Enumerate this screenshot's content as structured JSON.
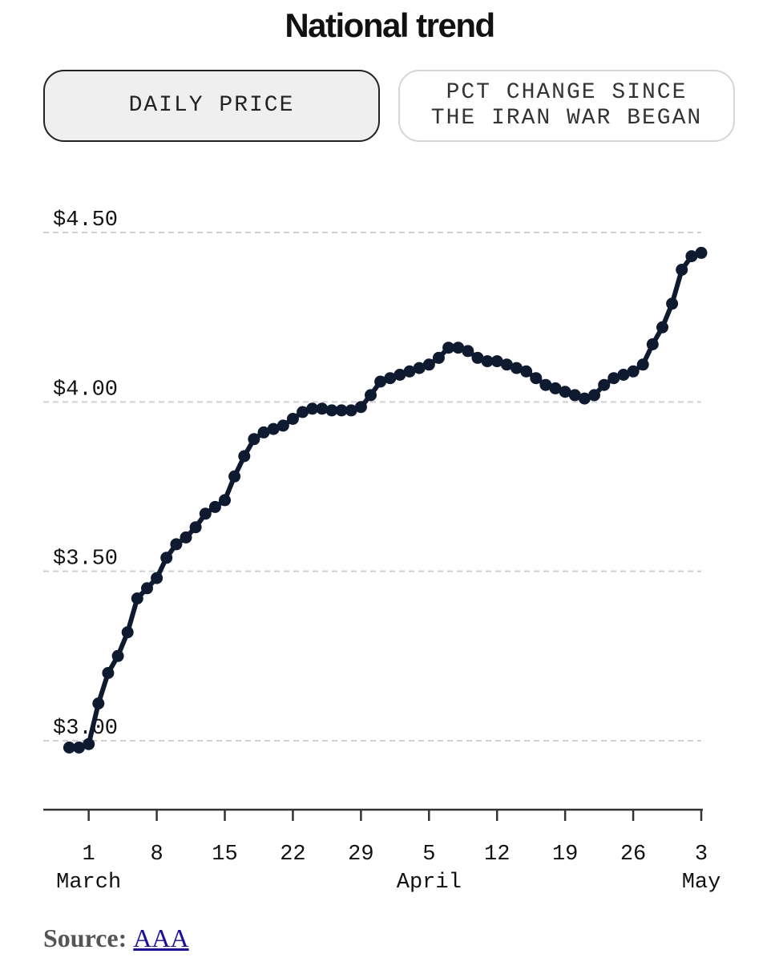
{
  "header": {
    "title": "National trend"
  },
  "toggles": [
    {
      "label": "DAILY PRICE",
      "active": true
    },
    {
      "label": "PCT CHANGE SINCE\nTHE IRAN WAR BEGAN",
      "active": false
    }
  ],
  "source": {
    "label": "Source:",
    "link_text": "AAA"
  },
  "colors": {
    "line": "#0e1a2f",
    "grid": "#cfcfcf",
    "axis": "#333333"
  },
  "chart_data": {
    "type": "line",
    "title": "National trend",
    "xlabel": "",
    "ylabel": "",
    "ylim": [
      2.85,
      4.65
    ],
    "y_ticks": [
      {
        "value": 3.0,
        "label": "$3.00"
      },
      {
        "value": 3.5,
        "label": "$3.50"
      },
      {
        "value": 4.0,
        "label": "$4.00"
      },
      {
        "value": 4.5,
        "label": "$4.50"
      }
    ],
    "x_ticks": [
      {
        "date": "2026-03-01",
        "label": "1",
        "month": "March"
      },
      {
        "date": "2026-03-08",
        "label": "8",
        "month": ""
      },
      {
        "date": "2026-03-15",
        "label": "15",
        "month": ""
      },
      {
        "date": "2026-03-22",
        "label": "22",
        "month": ""
      },
      {
        "date": "2026-03-29",
        "label": "29",
        "month": ""
      },
      {
        "date": "2026-04-05",
        "label": "5",
        "month": "April"
      },
      {
        "date": "2026-04-12",
        "label": "12",
        "month": ""
      },
      {
        "date": "2026-04-19",
        "label": "19",
        "month": ""
      },
      {
        "date": "2026-04-26",
        "label": "26",
        "month": ""
      },
      {
        "date": "2026-05-03",
        "label": "3",
        "month": "May"
      }
    ],
    "xlim": [
      "2026-02-24",
      "2026-05-03"
    ],
    "grid": true,
    "series": [
      {
        "x": [
          "2026-02-27",
          "2026-02-28",
          "2026-03-01",
          "2026-03-02",
          "2026-03-03",
          "2026-03-04",
          "2026-03-05",
          "2026-03-06",
          "2026-03-07",
          "2026-03-08",
          "2026-03-09",
          "2026-03-10",
          "2026-03-11",
          "2026-03-12",
          "2026-03-13",
          "2026-03-14",
          "2026-03-15",
          "2026-03-16",
          "2026-03-17",
          "2026-03-18",
          "2026-03-19",
          "2026-03-20",
          "2026-03-21",
          "2026-03-22",
          "2026-03-23",
          "2026-03-24",
          "2026-03-25",
          "2026-03-26",
          "2026-03-27",
          "2026-03-28",
          "2026-03-29",
          "2026-03-30",
          "2026-03-31",
          "2026-04-01",
          "2026-04-02",
          "2026-04-03",
          "2026-04-04",
          "2026-04-05",
          "2026-04-06",
          "2026-04-07",
          "2026-04-08",
          "2026-04-09",
          "2026-04-10",
          "2026-04-11",
          "2026-04-12",
          "2026-04-13",
          "2026-04-14",
          "2026-04-15",
          "2026-04-16",
          "2026-04-17",
          "2026-04-18",
          "2026-04-19",
          "2026-04-20",
          "2026-04-21",
          "2026-04-22",
          "2026-04-23",
          "2026-04-24",
          "2026-04-25",
          "2026-04-26",
          "2026-04-27",
          "2026-04-28",
          "2026-04-29",
          "2026-04-30",
          "2026-05-01",
          "2026-05-02",
          "2026-05-03"
        ],
        "values": [
          2.98,
          2.98,
          2.99,
          3.11,
          3.2,
          3.25,
          3.32,
          3.42,
          3.45,
          3.48,
          3.54,
          3.58,
          3.6,
          3.63,
          3.67,
          3.69,
          3.71,
          3.78,
          3.84,
          3.89,
          3.91,
          3.92,
          3.93,
          3.95,
          3.97,
          3.98,
          3.98,
          3.975,
          3.975,
          3.975,
          3.985,
          4.02,
          4.06,
          4.07,
          4.08,
          4.09,
          4.1,
          4.11,
          4.13,
          4.16,
          4.16,
          4.15,
          4.13,
          4.12,
          4.12,
          4.11,
          4.1,
          4.09,
          4.07,
          4.05,
          4.04,
          4.03,
          4.02,
          4.01,
          4.02,
          4.05,
          4.07,
          4.08,
          4.09,
          4.11,
          4.17,
          4.22,
          4.29,
          4.39,
          4.43,
          4.44
        ]
      }
    ]
  }
}
